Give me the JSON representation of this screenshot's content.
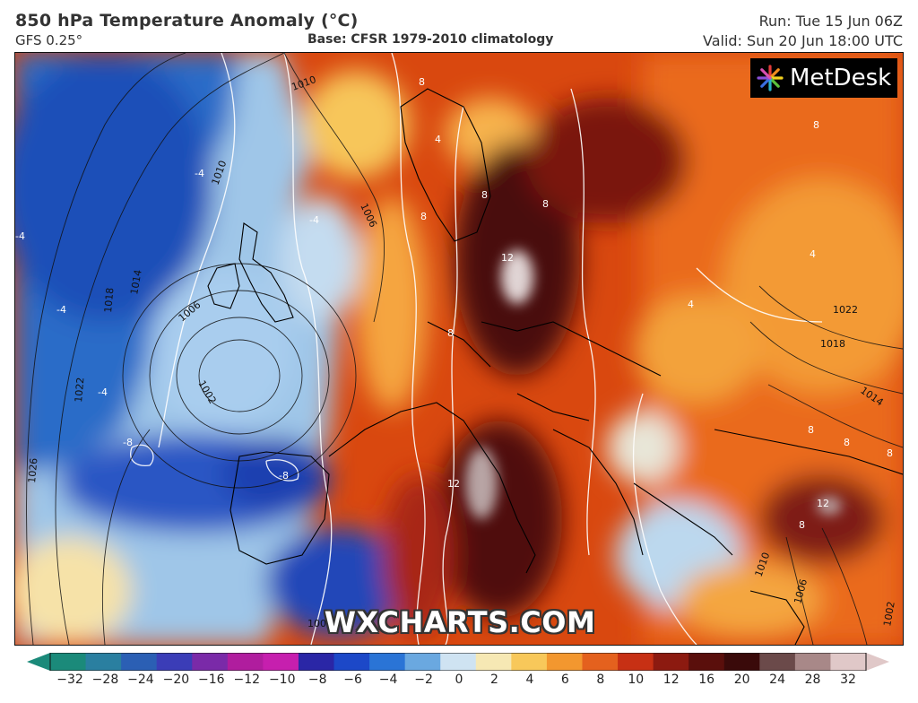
{
  "header": {
    "title": "850 hPa Temperature Anomaly (°C)",
    "model": "GFS 0.25°",
    "base": "Base: CFSR 1979-2010 climatology",
    "run": "Run: Tue 15 Jun 06Z",
    "valid": "Valid: Sun 20 Jun 18:00 UTC"
  },
  "logo": {
    "text": "MetDesk",
    "icon": "metdesk-star-icon"
  },
  "watermark": "WXCHARTS.COM",
  "map": {
    "isobar_labels": [
      "1010",
      "1010",
      "1014",
      "1018",
      "1006",
      "1002",
      "1022",
      "1026",
      "1006",
      "1022",
      "1018",
      "1014",
      "1010",
      "1006",
      "1002",
      "1002"
    ],
    "anomaly_labels": [
      "-4",
      "-4",
      "-4",
      "-4",
      "-4",
      "-8",
      "-8",
      "4",
      "8",
      "8",
      "8",
      "8",
      "12",
      "8",
      "12",
      "4",
      "4",
      "8",
      "8",
      "8",
      "12",
      "8",
      "8"
    ]
  },
  "colorbar": {
    "ticks": [
      "−32",
      "−28",
      "−24",
      "−20",
      "−16",
      "−12",
      "−10",
      "−8",
      "−6",
      "−4",
      "−2",
      "0",
      "2",
      "4",
      "6",
      "8",
      "10",
      "12",
      "16",
      "20",
      "24",
      "28",
      "32"
    ],
    "colors": [
      "#1b8a7a",
      "#2a7fa0",
      "#2b5fb4",
      "#3b3db7",
      "#7a2aa8",
      "#b01d9e",
      "#c61fae",
      "#2a26a6",
      "#1c48c8",
      "#2a74d6",
      "#6aa8e0",
      "#cfe3f2",
      "#f6e8b4",
      "#f8c85a",
      "#f3972f",
      "#e4611e",
      "#c73014",
      "#8c1a10",
      "#5a0f0c",
      "#3a0a0a",
      "#6b4a4a",
      "#a88888",
      "#e0c8c8"
    ]
  }
}
